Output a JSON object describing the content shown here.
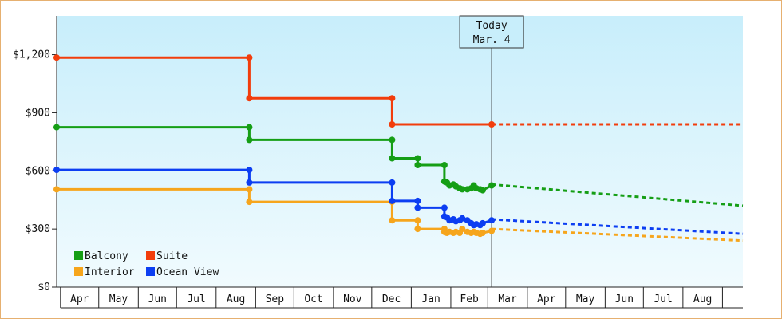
{
  "chart_data": {
    "type": "line",
    "subtype": "step",
    "title": "",
    "xlabel": "",
    "ylabel": "",
    "ylim": [
      0,
      1400
    ],
    "yticks": [
      {
        "value": 0,
        "label": "$0"
      },
      {
        "value": 300,
        "label": "$300"
      },
      {
        "value": 600,
        "label": "$600"
      },
      {
        "value": 900,
        "label": "$900"
      },
      {
        "value": 1200,
        "label": "$1,200"
      }
    ],
    "xlim": [
      "2023-03-29",
      "2024-09-17"
    ],
    "month_labels": [
      {
        "label": "Apr",
        "start": "2023-04-01",
        "end": "2023-05-01"
      },
      {
        "label": "May",
        "start": "2023-05-01",
        "end": "2023-06-01"
      },
      {
        "label": "Jun",
        "start": "2023-06-01",
        "end": "2023-07-01"
      },
      {
        "label": "Jul",
        "start": "2023-07-01",
        "end": "2023-08-01"
      },
      {
        "label": "Aug",
        "start": "2023-08-01",
        "end": "2023-09-01"
      },
      {
        "label": "Sep",
        "start": "2023-09-01",
        "end": "2023-10-01"
      },
      {
        "label": "Oct",
        "start": "2023-10-01",
        "end": "2023-11-01"
      },
      {
        "label": "Nov",
        "start": "2023-11-01",
        "end": "2023-12-01"
      },
      {
        "label": "Dec",
        "start": "2023-12-01",
        "end": "2024-01-01"
      },
      {
        "label": "Jan",
        "start": "2024-01-01",
        "end": "2024-02-01"
      },
      {
        "label": "Feb",
        "start": "2024-02-01",
        "end": "2024-03-01"
      },
      {
        "label": "Mar",
        "start": "2024-03-01",
        "end": "2024-04-01"
      },
      {
        "label": "Apr",
        "start": "2024-04-01",
        "end": "2024-05-01"
      },
      {
        "label": "May",
        "start": "2024-05-01",
        "end": "2024-06-01"
      },
      {
        "label": "Jun",
        "start": "2024-06-01",
        "end": "2024-07-01"
      },
      {
        "label": "Jul",
        "start": "2024-07-01",
        "end": "2024-08-01"
      },
      {
        "label": "Aug",
        "start": "2024-08-01",
        "end": "2024-09-01"
      }
    ],
    "grid": false,
    "legend_position": "bottom-left",
    "today": {
      "date": "2024-03-04",
      "line1": "Today",
      "line2": "Mar. 4"
    },
    "series": [
      {
        "name": "Balcony",
        "color": "#159e15",
        "points": [
          [
            "2023-03-29",
            825
          ],
          [
            "2023-08-27",
            825
          ],
          [
            "2023-08-27",
            760
          ],
          [
            "2023-12-17",
            760
          ],
          [
            "2023-12-17",
            665
          ],
          [
            "2024-01-06",
            665
          ],
          [
            "2024-01-06",
            630
          ],
          [
            "2024-01-27",
            630
          ],
          [
            "2024-01-27",
            545
          ],
          [
            "2024-01-29",
            540
          ],
          [
            "2024-01-31",
            525
          ],
          [
            "2024-02-03",
            530
          ],
          [
            "2024-02-05",
            520
          ],
          [
            "2024-02-08",
            510
          ],
          [
            "2024-02-10",
            505
          ],
          [
            "2024-02-14",
            505
          ],
          [
            "2024-02-17",
            510
          ],
          [
            "2024-02-19",
            525
          ],
          [
            "2024-02-21",
            510
          ],
          [
            "2024-02-24",
            505
          ],
          [
            "2024-02-26",
            500
          ],
          [
            "2024-03-04",
            525
          ]
        ],
        "projection": [
          [
            "2024-03-04",
            530
          ],
          [
            "2024-09-17",
            420
          ]
        ]
      },
      {
        "name": "Suite",
        "color": "#f23d0c",
        "points": [
          [
            "2023-03-29",
            1185
          ],
          [
            "2023-08-27",
            1185
          ],
          [
            "2023-08-27",
            975
          ],
          [
            "2023-12-17",
            975
          ],
          [
            "2023-12-17",
            840
          ],
          [
            "2024-03-04",
            840
          ]
        ],
        "projection": [
          [
            "2024-03-04",
            840
          ],
          [
            "2024-09-17",
            840
          ]
        ]
      },
      {
        "name": "Interior",
        "color": "#f6a51c",
        "points": [
          [
            "2023-03-29",
            505
          ],
          [
            "2023-08-27",
            505
          ],
          [
            "2023-08-27",
            440
          ],
          [
            "2023-12-17",
            440
          ],
          [
            "2023-12-17",
            345
          ],
          [
            "2024-01-06",
            345
          ],
          [
            "2024-01-06",
            300
          ],
          [
            "2024-01-27",
            300
          ],
          [
            "2024-01-27",
            285
          ],
          [
            "2024-01-29",
            280
          ],
          [
            "2024-01-31",
            285
          ],
          [
            "2024-02-03",
            280
          ],
          [
            "2024-02-05",
            285
          ],
          [
            "2024-02-08",
            280
          ],
          [
            "2024-02-10",
            300
          ],
          [
            "2024-02-14",
            285
          ],
          [
            "2024-02-17",
            280
          ],
          [
            "2024-02-19",
            285
          ],
          [
            "2024-02-21",
            280
          ],
          [
            "2024-02-24",
            275
          ],
          [
            "2024-02-26",
            280
          ],
          [
            "2024-03-04",
            290
          ]
        ],
        "projection": [
          [
            "2024-03-04",
            300
          ],
          [
            "2024-09-17",
            240
          ]
        ]
      },
      {
        "name": "Ocean View",
        "color": "#0c3ef2",
        "points": [
          [
            "2023-03-29",
            605
          ],
          [
            "2023-08-27",
            605
          ],
          [
            "2023-08-27",
            540
          ],
          [
            "2023-12-17",
            540
          ],
          [
            "2023-12-17",
            445
          ],
          [
            "2024-01-06",
            445
          ],
          [
            "2024-01-06",
            410
          ],
          [
            "2024-01-27",
            410
          ],
          [
            "2024-01-27",
            365
          ],
          [
            "2024-01-29",
            360
          ],
          [
            "2024-01-31",
            345
          ],
          [
            "2024-02-03",
            350
          ],
          [
            "2024-02-05",
            340
          ],
          [
            "2024-02-08",
            345
          ],
          [
            "2024-02-10",
            355
          ],
          [
            "2024-02-14",
            345
          ],
          [
            "2024-02-17",
            330
          ],
          [
            "2024-02-19",
            320
          ],
          [
            "2024-02-21",
            325
          ],
          [
            "2024-02-24",
            320
          ],
          [
            "2024-02-26",
            330
          ],
          [
            "2024-03-04",
            345
          ]
        ],
        "projection": [
          [
            "2024-03-04",
            350
          ],
          [
            "2024-09-17",
            275
          ]
        ]
      }
    ]
  }
}
